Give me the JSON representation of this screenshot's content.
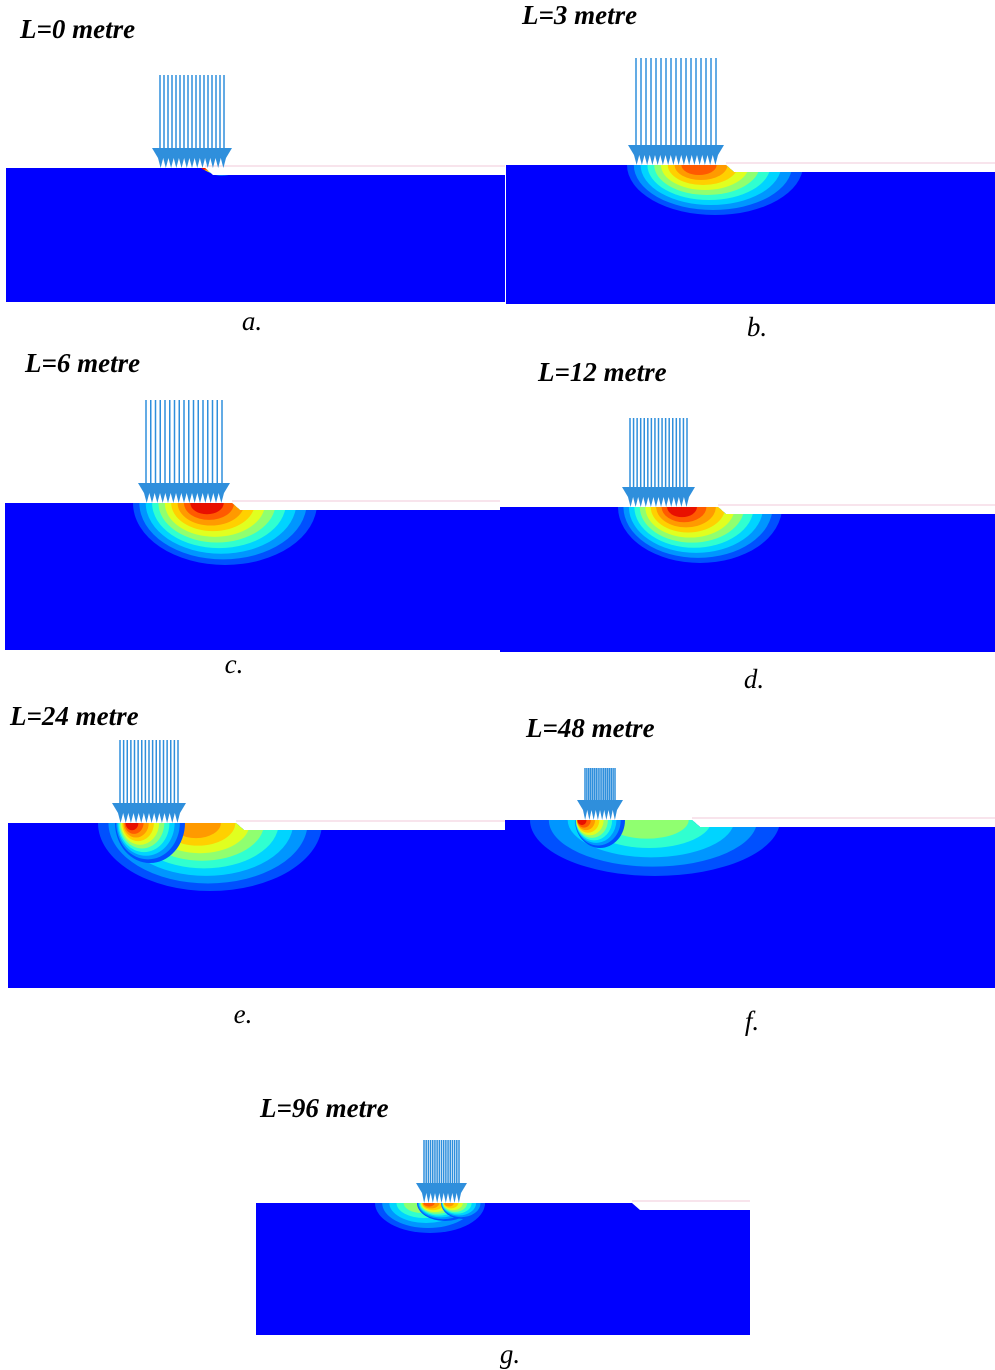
{
  "panels": [
    {
      "title": "L=0 metre",
      "caption": "a."
    },
    {
      "title": "L=3 metre",
      "caption": "b."
    },
    {
      "title": "L=6 metre",
      "caption": "c."
    },
    {
      "title": "L=12 metre",
      "caption": "d."
    },
    {
      "title": "L=24 metre",
      "caption": "e."
    },
    {
      "title": "L=48 metre",
      "caption": "f."
    },
    {
      "title": "L=96 metre",
      "caption": "g."
    }
  ]
}
